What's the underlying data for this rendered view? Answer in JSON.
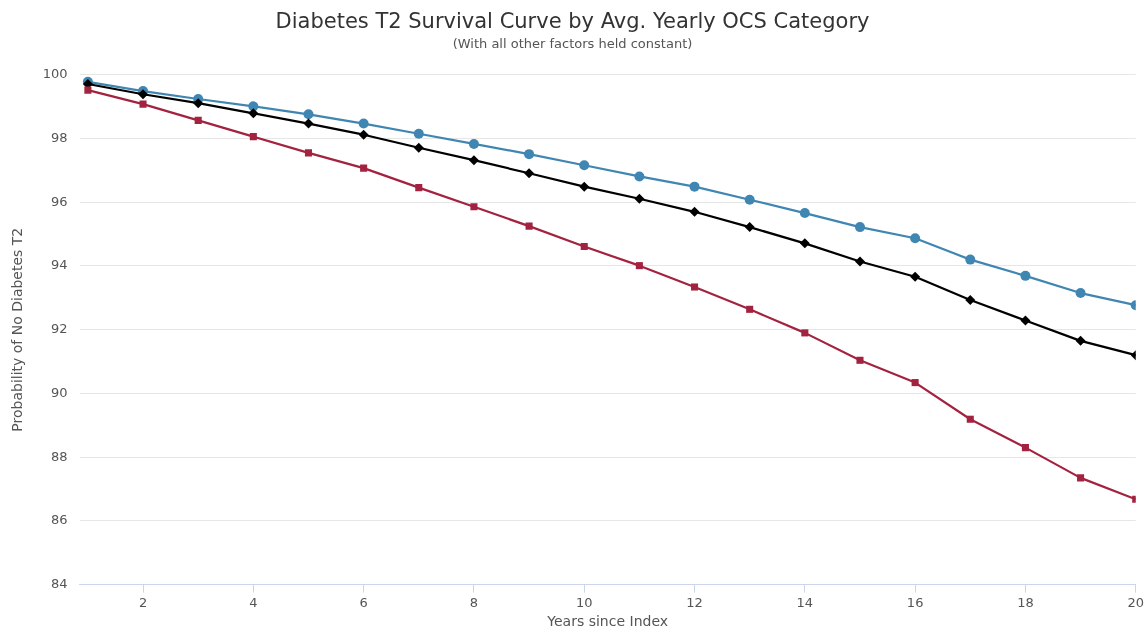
{
  "chart_data": {
    "type": "line",
    "title": "Diabetes T2 Survival Curve by Avg. Yearly OCS Category",
    "subtitle": "(With all other factors held constant)",
    "xlabel": "Years since Index",
    "ylabel": "Probability of No Diabetes T2",
    "x": [
      1,
      2,
      3,
      4,
      5,
      6,
      7,
      8,
      9,
      10,
      11,
      12,
      13,
      14,
      15,
      16,
      17,
      18,
      19,
      20
    ],
    "series": [
      {
        "color": "#3f86b2",
        "marker": "circle",
        "values": [
          99.78,
          99.49,
          99.24,
          99.01,
          98.76,
          98.47,
          98.15,
          97.83,
          97.51,
          97.16,
          96.81,
          96.49,
          96.08,
          95.66,
          95.22,
          94.87,
          94.2,
          93.69,
          93.15,
          92.77
        ]
      },
      {
        "color": "#000000",
        "marker": "diamond",
        "values": [
          99.71,
          99.39,
          99.11,
          98.79,
          98.47,
          98.12,
          97.71,
          97.32,
          96.91,
          96.49,
          96.11,
          95.7,
          95.22,
          94.71,
          94.14,
          93.66,
          92.93,
          92.29,
          91.65,
          91.2
        ]
      },
      {
        "color": "#a3223f",
        "marker": "square",
        "values": [
          99.52,
          99.08,
          98.57,
          98.06,
          97.55,
          97.07,
          96.46,
          95.86,
          95.25,
          94.61,
          94.01,
          93.34,
          92.64,
          91.9,
          91.04,
          90.34,
          89.19,
          88.3,
          87.35,
          86.68
        ]
      }
    ],
    "xlim": [
      0.85,
      20
    ],
    "xticks": [
      2,
      4,
      6,
      8,
      10,
      12,
      14,
      16,
      18,
      20
    ],
    "ylim": [
      84,
      100
    ],
    "yticks": [
      84,
      86,
      88,
      90,
      92,
      94,
      96,
      98,
      100
    ],
    "grid": "y",
    "legend": false,
    "line_style": "solid"
  }
}
